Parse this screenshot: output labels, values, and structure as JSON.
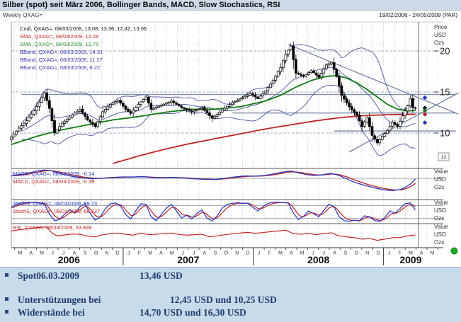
{
  "header": {
    "title": "Silber (spot) seit März 2006, Bollinger Bands, MACD, Slow Stochastics, RSI",
    "weekly_label": "Weekly QXAG=",
    "date_range": "19/02/2006 - 24/05/2009 (PAR)"
  },
  "main_legend": {
    "cndl": "Cndl, QXAG=, 08/03/2009, 13.08, 13.36, 12.42, 13.06",
    "sma_red": "SMA, QXAG=, 08/03/2009, 12.28",
    "sma_green": "SMA, QXAG=, 08/03/2009, 12.75",
    "bband_upper": "BBand, QXAG=, 08/03/2009, 14.31",
    "bband_mid": "BBand, QXAG=, 08/03/2009, 11.27",
    "bband_lower": "BBand, QXAG=, 08/03/2009, 8.22"
  },
  "panel_legends": {
    "macd_blue": "MACD, QXAG=, 08/03/2009, -0.14",
    "macd_red": "MACD, QXAG=, 08/03/2009, -0.39",
    "stoch_blue": "StochS, QXAG=, 08/03/2009, 59.73",
    "stoch_red": "StochS, QXAG=, 08/03/2009, 68.227",
    "rsi_red": "RSI, QXAG=, 08/03/2009, 53.849"
  },
  "axis": {
    "main_caption": [
      "Price",
      "USD",
      "Ozs"
    ],
    "value_caption": [
      "Value",
      "USD",
      "Ozs"
    ],
    "price_labels": [
      {
        "text": "20",
        "value": 20
      },
      {
        "text": "15",
        "value": 15
      },
      {
        "text": "10",
        "value": 10
      }
    ],
    "months": [
      "M",
      "A",
      "M",
      "J",
      "J",
      "A",
      "S",
      "O",
      "N",
      "D",
      "J",
      "F",
      "M",
      "A",
      "M",
      "J",
      "J",
      "A",
      "S",
      "O",
      "N",
      "D",
      "J",
      "F",
      "M",
      "A",
      "M",
      "J",
      "J",
      "A",
      "S",
      "O",
      "N",
      "D",
      "J",
      "F",
      "M",
      "A",
      "M"
    ],
    "years": [
      {
        "label": "2006",
        "start_month": 0,
        "end_month": 9
      },
      {
        "label": "2007",
        "start_month": 10,
        "end_month": 21
      },
      {
        "label": "2008",
        "start_month": 22,
        "end_month": 33
      },
      {
        "label": "2009",
        "start_month": 34,
        "end_month": 38
      }
    ],
    "last_box_label": "12"
  },
  "info_panel": {
    "rows": [
      {
        "label": "Spot06.03.2009",
        "value": "13,46 USD"
      },
      {
        "label": "Unterstützungen bei",
        "value": "12,45 USD und 10,25 USD"
      },
      {
        "label": "Widerstände bei",
        "value": "14,70 USD und 16,30 USD"
      }
    ]
  },
  "colors": {
    "titlebar_bg": "#cdd9e6",
    "info_bg": "#c8dbea",
    "info_text": "#1d3d6e",
    "candle": "#000000",
    "sma_fast_green": "#117b11",
    "sma_slow_red": "#c22222",
    "bband": "#5a63a8",
    "trendline": "#6b7aa1",
    "level": "#8492ac",
    "macd_line": "#2233bb",
    "macd_signal": "#c22222",
    "stoch_k": "#2233bb",
    "stoch_d": "#c22222",
    "rsi": "#c22222",
    "status_dot": "#1faa1f"
  },
  "chart_data": {
    "type": "candlestick+indicators",
    "instrument": "QXAG=",
    "interval": "weekly",
    "x_range_weeks": [
      0,
      170
    ],
    "main": {
      "ylim": [
        6,
        22.5
      ],
      "gridlines_price": [
        20,
        15,
        10
      ],
      "close_anchors": [
        [
          0,
          9.5
        ],
        [
          3,
          10.6
        ],
        [
          6,
          11.5
        ],
        [
          9,
          12.7
        ],
        [
          12,
          14.3
        ],
        [
          13,
          14.9
        ],
        [
          15,
          13.0
        ],
        [
          17,
          10.0
        ],
        [
          20,
          11.2
        ],
        [
          24,
          12.2
        ],
        [
          27,
          12.9
        ],
        [
          30,
          11.6
        ],
        [
          33,
          10.8
        ],
        [
          36,
          12.6
        ],
        [
          39,
          13.5
        ],
        [
          42,
          14.0
        ],
        [
          45,
          12.9
        ],
        [
          47,
          12.4
        ],
        [
          50,
          13.5
        ],
        [
          53,
          14.4
        ],
        [
          55,
          12.9
        ],
        [
          59,
          13.4
        ],
        [
          63,
          13.9
        ],
        [
          67,
          13.1
        ],
        [
          71,
          12.6
        ],
        [
          75,
          13.1
        ],
        [
          79,
          11.8
        ],
        [
          83,
          12.8
        ],
        [
          87,
          13.7
        ],
        [
          91,
          14.3
        ],
        [
          94,
          14.8
        ],
        [
          97,
          14.2
        ],
        [
          100,
          15.1
        ],
        [
          103,
          16.4
        ],
        [
          106,
          18.0
        ],
        [
          108,
          19.6
        ],
        [
          110,
          20.6
        ],
        [
          112,
          17.3
        ],
        [
          115,
          16.9
        ],
        [
          118,
          17.6
        ],
        [
          121,
          16.8
        ],
        [
          124,
          18.3
        ],
        [
          126,
          18.6
        ],
        [
          128,
          16.9
        ],
        [
          130,
          14.6
        ],
        [
          133,
          13.2
        ],
        [
          136,
          12.2
        ],
        [
          138,
          10.8
        ],
        [
          140,
          11.9
        ],
        [
          142,
          9.7
        ],
        [
          144,
          8.8
        ],
        [
          146,
          9.6
        ],
        [
          148,
          10.3
        ],
        [
          150,
          11.3
        ],
        [
          152,
          10.8
        ],
        [
          154,
          12.1
        ],
        [
          156,
          13.3
        ],
        [
          157,
          14.2
        ],
        [
          158,
          13.1
        ],
        [
          159,
          13.06
        ]
      ],
      "sma_green_anchors": [
        [
          0,
          8.6
        ],
        [
          10,
          9.6
        ],
        [
          20,
          10.4
        ],
        [
          30,
          11.0
        ],
        [
          40,
          11.6
        ],
        [
          50,
          12.0
        ],
        [
          60,
          12.5
        ],
        [
          70,
          12.9
        ],
        [
          80,
          12.9
        ],
        [
          90,
          13.2
        ],
        [
          100,
          13.9
        ],
        [
          106,
          14.6
        ],
        [
          112,
          15.6
        ],
        [
          118,
          16.4
        ],
        [
          124,
          16.9
        ],
        [
          128,
          17.0
        ],
        [
          132,
          16.7
        ],
        [
          136,
          16.1
        ],
        [
          140,
          15.3
        ],
        [
          144,
          14.4
        ],
        [
          148,
          13.5
        ],
        [
          152,
          12.9
        ],
        [
          156,
          12.7
        ],
        [
          159,
          12.75
        ]
      ],
      "sma_red_anchors": [
        [
          40,
          6.3
        ],
        [
          50,
          7.2
        ],
        [
          60,
          8.0
        ],
        [
          70,
          8.7
        ],
        [
          80,
          9.3
        ],
        [
          90,
          9.9
        ],
        [
          100,
          10.5
        ],
        [
          110,
          11.0
        ],
        [
          120,
          11.5
        ],
        [
          130,
          11.9
        ],
        [
          140,
          12.15
        ],
        [
          150,
          12.25
        ],
        [
          159,
          12.28
        ]
      ],
      "bollinger": {
        "window": 20,
        "mult": 2,
        "last_upper": 14.31,
        "last_mid": 11.27,
        "last_lower": 8.22
      },
      "last_candle": {
        "open": 13.08,
        "high": 13.36,
        "low": 12.42,
        "close": 13.06
      },
      "levels": [
        {
          "price": 14.7,
          "from_w": 4,
          "to_w": 175
        },
        {
          "price": 12.45,
          "from_w": 87,
          "to_w": 175
        },
        {
          "price": 10.25,
          "from_w": 127,
          "to_w": 175
        }
      ],
      "trendlines": [
        {
          "w1": 109,
          "p1": 20.8,
          "w2": 176,
          "p2": 12.3
        },
        {
          "w1": 133,
          "p1": 7.7,
          "w2": 176,
          "p2": 14.9
        }
      ],
      "markers": [
        {
          "price": 14.31,
          "color": "#2233bb"
        },
        {
          "price": 13.06,
          "color": "#000000"
        },
        {
          "price": 12.75,
          "color": "#117b11"
        },
        {
          "price": 12.28,
          "color": "#c22222"
        },
        {
          "price": 11.27,
          "color": "#2233bb"
        }
      ]
    },
    "macd": {
      "last_values": {
        "macd": -0.14,
        "signal": -0.39
      },
      "anchors": [
        [
          0,
          0.5
        ],
        [
          6,
          1.0
        ],
        [
          10,
          1.5
        ],
        [
          13,
          1.75
        ],
        [
          16,
          1.55
        ],
        [
          20,
          0.9
        ],
        [
          24,
          0.4
        ],
        [
          28,
          0.1
        ],
        [
          32,
          -0.1
        ],
        [
          36,
          0.05
        ],
        [
          40,
          0.2
        ],
        [
          44,
          0.3
        ],
        [
          48,
          0.3
        ],
        [
          52,
          0.35
        ],
        [
          56,
          0.15
        ],
        [
          60,
          0.15
        ],
        [
          64,
          0.2
        ],
        [
          68,
          0.05
        ],
        [
          72,
          -0.1
        ],
        [
          76,
          -0.2
        ],
        [
          80,
          -0.25
        ],
        [
          84,
          0.0
        ],
        [
          88,
          0.3
        ],
        [
          92,
          0.5
        ],
        [
          96,
          0.45
        ],
        [
          100,
          0.6
        ],
        [
          104,
          1.0
        ],
        [
          108,
          1.4
        ],
        [
          110,
          1.5
        ],
        [
          113,
          1.15
        ],
        [
          116,
          0.8
        ],
        [
          119,
          0.6
        ],
        [
          122,
          0.7
        ],
        [
          124,
          0.9
        ],
        [
          126,
          1.0
        ],
        [
          129,
          0.6
        ],
        [
          132,
          -0.1
        ],
        [
          135,
          -0.8
        ],
        [
          138,
          -1.3
        ],
        [
          141,
          -1.7
        ],
        [
          144,
          -2.1
        ],
        [
          147,
          -2.4
        ],
        [
          150,
          -2.55
        ],
        [
          153,
          -2.35
        ],
        [
          155,
          -1.9
        ],
        [
          157,
          -1.2
        ],
        [
          159,
          -0.14
        ]
      ]
    },
    "stoch": {
      "last_values": {
        "k": 59.73,
        "d": 68.227
      },
      "levels": [
        80,
        20
      ],
      "k_anchors": [
        [
          0,
          70
        ],
        [
          2,
          85
        ],
        [
          4,
          92
        ],
        [
          7,
          94
        ],
        [
          10,
          93
        ],
        [
          13,
          88
        ],
        [
          15,
          40
        ],
        [
          17,
          10
        ],
        [
          19,
          15
        ],
        [
          21,
          40
        ],
        [
          23,
          60
        ],
        [
          25,
          45
        ],
        [
          27,
          75
        ],
        [
          29,
          88
        ],
        [
          31,
          45
        ],
        [
          33,
          12
        ],
        [
          35,
          28
        ],
        [
          37,
          65
        ],
        [
          39,
          88
        ],
        [
          41,
          92
        ],
        [
          43,
          78
        ],
        [
          45,
          38
        ],
        [
          47,
          18
        ],
        [
          49,
          55
        ],
        [
          51,
          88
        ],
        [
          53,
          86
        ],
        [
          55,
          28
        ],
        [
          57,
          10
        ],
        [
          59,
          38
        ],
        [
          61,
          68
        ],
        [
          63,
          85
        ],
        [
          65,
          55
        ],
        [
          67,
          22
        ],
        [
          69,
          35
        ],
        [
          71,
          18
        ],
        [
          73,
          42
        ],
        [
          75,
          60
        ],
        [
          77,
          22
        ],
        [
          79,
          8
        ],
        [
          81,
          32
        ],
        [
          83,
          68
        ],
        [
          85,
          85
        ],
        [
          87,
          90
        ],
        [
          89,
          93
        ],
        [
          91,
          90
        ],
        [
          93,
          91
        ],
        [
          95,
          72
        ],
        [
          97,
          55
        ],
        [
          99,
          74
        ],
        [
          101,
          90
        ],
        [
          103,
          94
        ],
        [
          105,
          95
        ],
        [
          107,
          94
        ],
        [
          109,
          91
        ],
        [
          111,
          45
        ],
        [
          113,
          15
        ],
        [
          115,
          30
        ],
        [
          117,
          55
        ],
        [
          119,
          42
        ],
        [
          121,
          28
        ],
        [
          123,
          58
        ],
        [
          125,
          86
        ],
        [
          127,
          74
        ],
        [
          129,
          28
        ],
        [
          131,
          10
        ],
        [
          133,
          7
        ],
        [
          135,
          12
        ],
        [
          137,
          9
        ],
        [
          139,
          32
        ],
        [
          141,
          28
        ],
        [
          143,
          10
        ],
        [
          145,
          7
        ],
        [
          147,
          24
        ],
        [
          149,
          55
        ],
        [
          151,
          44
        ],
        [
          153,
          66
        ],
        [
          155,
          88
        ],
        [
          157,
          92
        ],
        [
          159,
          59.73
        ]
      ]
    },
    "rsi": {
      "last_value": 53.849,
      "anchors": [
        [
          0,
          70
        ],
        [
          3,
          76
        ],
        [
          6,
          80
        ],
        [
          9,
          84
        ],
        [
          12,
          87
        ],
        [
          14,
          88
        ],
        [
          16,
          62
        ],
        [
          18,
          50
        ],
        [
          21,
          54
        ],
        [
          24,
          58
        ],
        [
          27,
          57
        ],
        [
          30,
          49
        ],
        [
          33,
          46
        ],
        [
          36,
          55
        ],
        [
          39,
          60
        ],
        [
          42,
          62
        ],
        [
          45,
          57
        ],
        [
          48,
          53
        ],
        [
          51,
          62
        ],
        [
          54,
          55
        ],
        [
          57,
          57
        ],
        [
          60,
          60
        ],
        [
          63,
          62
        ],
        [
          66,
          56
        ],
        [
          69,
          53
        ],
        [
          72,
          55
        ],
        [
          75,
          57
        ],
        [
          78,
          46
        ],
        [
          81,
          50
        ],
        [
          84,
          55
        ],
        [
          87,
          59
        ],
        [
          90,
          62
        ],
        [
          93,
          65
        ],
        [
          96,
          61
        ],
        [
          99,
          64
        ],
        [
          102,
          68
        ],
        [
          105,
          71
        ],
        [
          108,
          74
        ],
        [
          111,
          60
        ],
        [
          114,
          57
        ],
        [
          117,
          61
        ],
        [
          120,
          55
        ],
        [
          123,
          60
        ],
        [
          126,
          63
        ],
        [
          129,
          50
        ],
        [
          132,
          46
        ],
        [
          135,
          42
        ],
        [
          138,
          36
        ],
        [
          141,
          39
        ],
        [
          144,
          31
        ],
        [
          147,
          36
        ],
        [
          150,
          42
        ],
        [
          153,
          43
        ],
        [
          156,
          50
        ],
        [
          159,
          53.849
        ]
      ]
    }
  }
}
